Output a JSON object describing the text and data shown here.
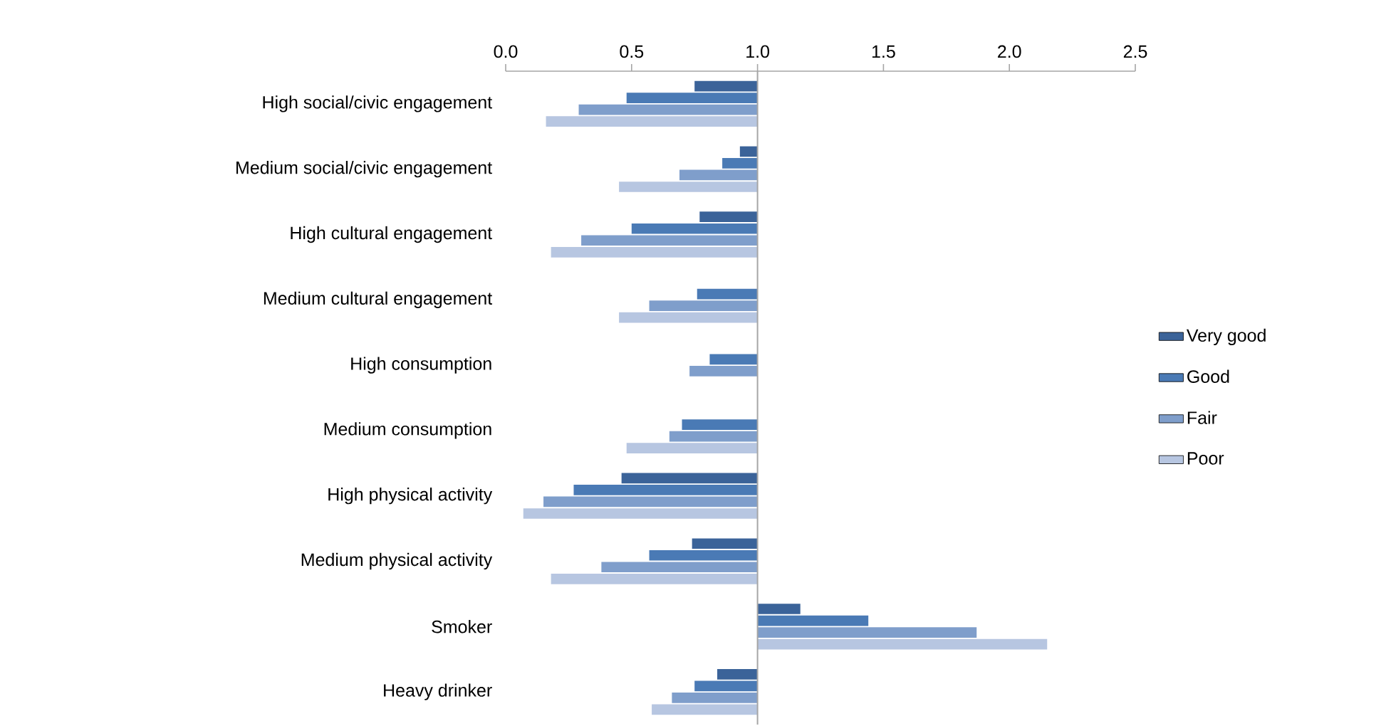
{
  "chart_data": {
    "type": "bar",
    "orientation": "horizontal",
    "categories": [
      "High social/civic engagement",
      "Medium social/civic engagement",
      "High cultural engagement",
      "Medium cultural engagement",
      "High consumption",
      "Medium consumption",
      "High physical activity",
      "Medium physical activity",
      "Smoker",
      "Heavy drinker"
    ],
    "series": [
      {
        "name": "Very good",
        "color": "#3b6399",
        "base": [
          0.75,
          0.93,
          0.77,
          null,
          null,
          null,
          0.46,
          0.74,
          1,
          0.84
        ],
        "values": [
          0.25,
          0.07,
          0.23,
          null,
          null,
          null,
          0.54,
          0.26,
          0.17,
          0.16
        ]
      },
      {
        "name": "Good",
        "color": "#4a7ab5",
        "base": [
          0.48,
          0.86,
          0.5,
          0.76,
          0.81,
          0.7,
          0.27,
          0.57,
          1,
          0.75
        ],
        "values": [
          0.52,
          0.14,
          0.5,
          0.24,
          0.19,
          0.3,
          0.73,
          0.43,
          0.44,
          0.25
        ]
      },
      {
        "name": "Fair",
        "color": "#7f9ecb",
        "base": [
          0.29,
          0.69,
          0.3,
          0.57,
          0.73,
          0.65,
          0.15,
          0.38,
          1,
          0.66
        ],
        "values": [
          0.71,
          0.31,
          0.7,
          0.43,
          0.27,
          0.35,
          0.85,
          0.62,
          0.87,
          0.34
        ]
      },
      {
        "name": "Poor",
        "color": "#b7c6e1",
        "base": [
          0.16,
          0.45,
          0.18,
          0.45,
          null,
          0.48,
          0.07,
          0.18,
          1,
          0.58
        ],
        "values": [
          0.84,
          0.55,
          0.82,
          0.55,
          null,
          0.52,
          0.93,
          0.82,
          1.15,
          0.42
        ]
      }
    ],
    "xlim": [
      0,
      2.5
    ],
    "xticks": [
      {
        "value": 0,
        "label": "0.0"
      },
      0.5,
      {
        "value": 1,
        "label": "1.0"
      },
      1.5,
      {
        "value": 2,
        "label": "2.0"
      },
      2.5
    ],
    "ref_lines": [
      {
        "axis": "x",
        "value": 1,
        "color": "#a6a6a6"
      }
    ],
    "legend": "right"
  }
}
